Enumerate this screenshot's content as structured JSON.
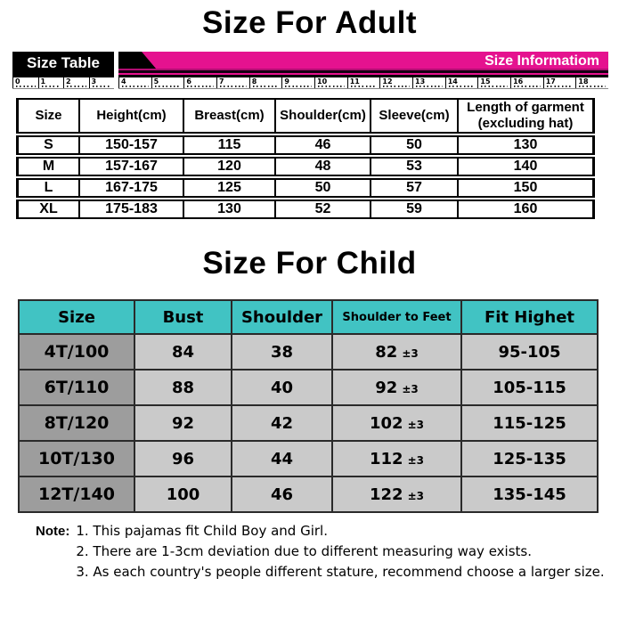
{
  "colors": {
    "magenta": "#E5128F",
    "teal": "#41C3C3",
    "first_col_gray": "#9D9D9D",
    "cell_gray": "#CACACA"
  },
  "adult": {
    "title": "Size For Adult",
    "banner": {
      "left_label": "Size Table",
      "right_label": "Size Informatiom"
    },
    "ruler": {
      "left_numbers": [
        "0",
        "1",
        "2",
        "3"
      ],
      "right_numbers": [
        "4",
        "5",
        "6",
        "7",
        "8",
        "9",
        "10",
        "11",
        "12",
        "13",
        "14",
        "15",
        "16",
        "17",
        "18"
      ]
    },
    "table": {
      "headers": [
        "Size",
        "Height(cm)",
        "Breast(cm)",
        "Shoulder(cm)",
        "Sleeve(cm)",
        "Length of garment\n(excluding hat)"
      ],
      "rows": [
        [
          "S",
          "150-157",
          "115",
          "46",
          "50",
          "130"
        ],
        [
          "M",
          "157-167",
          "120",
          "48",
          "53",
          "140"
        ],
        [
          "L",
          "167-175",
          "125",
          "50",
          "57",
          "150"
        ],
        [
          "XL",
          "175-183",
          "130",
          "52",
          "59",
          "160"
        ]
      ]
    }
  },
  "child": {
    "title": "Size For Child",
    "table": {
      "headers": [
        "Size",
        "Bust",
        "Shoulder",
        "Shoulder to Feet",
        "Fit Highet"
      ],
      "rows": [
        [
          "4T/100",
          "84",
          "38",
          "82|±3",
          "95-105"
        ],
        [
          "6T/110",
          "88",
          "40",
          "92|±3",
          "105-115"
        ],
        [
          "8T/120",
          "92",
          "42",
          "102|±3",
          "115-125"
        ],
        [
          "10T/130",
          "96",
          "44",
          "112|±3",
          "125-135"
        ],
        [
          "12T/140",
          "100",
          "46",
          "122|±3",
          "135-145"
        ]
      ]
    }
  },
  "notes": {
    "label": "Note:",
    "items": [
      "1. This pajamas fit Child Boy and Girl.",
      "2. There are 1-3cm deviation due to different measuring way exists.",
      "3. As each country's people different stature, recommend choose a larger size."
    ]
  }
}
